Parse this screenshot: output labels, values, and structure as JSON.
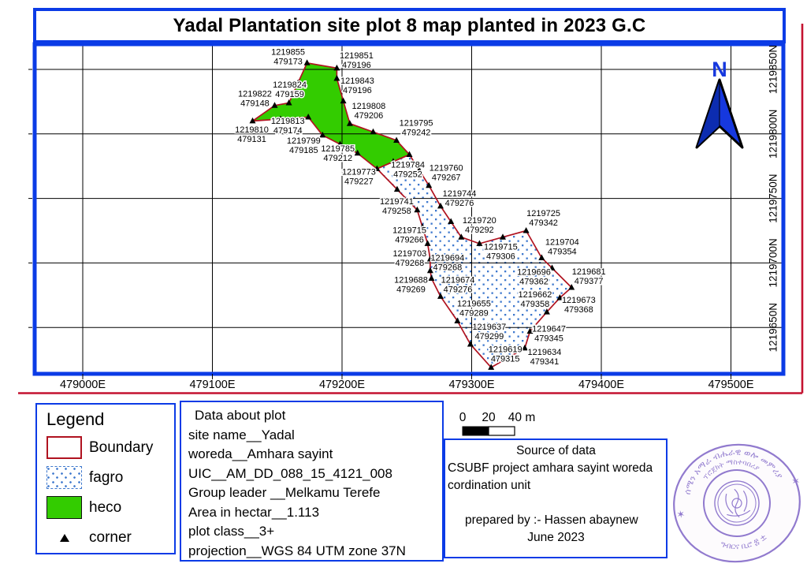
{
  "title": "Yadal Plantation site plot 8 map planted in 2023 G.C",
  "map": {
    "north_label": "N",
    "eastings": [
      {
        "v": 479000,
        "label": "479000E"
      },
      {
        "v": 479100,
        "label": "479100E"
      },
      {
        "v": 479200,
        "label": "479200E"
      },
      {
        "v": 479300,
        "label": "479300E"
      },
      {
        "v": 479400,
        "label": "479400E"
      },
      {
        "v": 479500,
        "label": "479500E"
      }
    ],
    "northings": [
      {
        "v": 1219850,
        "label": "1219850N"
      },
      {
        "v": 1219800,
        "label": "1219800N"
      },
      {
        "v": 1219750,
        "label": "1219750N"
      },
      {
        "v": 1219700,
        "label": "1219700N"
      },
      {
        "v": 1219650,
        "label": "1219650N"
      }
    ],
    "points": [
      {
        "n": 1219855,
        "e": 479173,
        "ox": -24,
        "oy": -8
      },
      {
        "n": 1219851,
        "e": 479196,
        "ox": 25,
        "oy": -10
      },
      {
        "n": 1219843,
        "e": 479196,
        "ox": 26,
        "oy": 9
      },
      {
        "n": 1219808,
        "e": 479206,
        "ox": 24,
        "oy": -16
      },
      {
        "n": 1219795,
        "e": 479242,
        "ox": 25,
        "oy": -16
      },
      {
        "n": 1219784,
        "e": 479252,
        "ox": -2,
        "oy": 19
      },
      {
        "n": 1219760,
        "e": 479267,
        "ox": 22,
        "oy": -16
      },
      {
        "n": 1219744,
        "e": 479276,
        "ox": 24,
        "oy": -10
      },
      {
        "n": 1219720,
        "e": 479292,
        "ox": 23,
        "oy": -15
      },
      {
        "n": 1219715,
        "e": 479306,
        "ox": 27,
        "oy": 10
      },
      {
        "n": 1219725,
        "e": 479342,
        "ox": 22,
        "oy": -16
      },
      {
        "n": 1219704,
        "e": 479354,
        "ox": 26,
        "oy": -14
      },
      {
        "n": 1219696,
        "e": 479362,
        "ox": -23,
        "oy": 11
      },
      {
        "n": 1219681,
        "e": 479377,
        "ox": 22,
        "oy": -14
      },
      {
        "n": 1219673,
        "e": 479368,
        "ox": 24,
        "oy": 9
      },
      {
        "n": 1219662,
        "e479": true,
        "e": 479358,
        "ox": -15,
        "oy": -16
      },
      {
        "n": 1219647,
        "e": 479345,
        "ox": 24,
        "oy": 3
      },
      {
        "n": 1219634,
        "e": 479341,
        "ox": 25,
        "oy": 11
      },
      {
        "n": 1219619,
        "e": 479315,
        "ox": 18,
        "oy": -17
      },
      {
        "n": 1219637,
        "e": 479299,
        "ox": 24,
        "oy": -16
      },
      {
        "n": 1219655,
        "e": 479289,
        "ox": 21,
        "oy": -16
      },
      {
        "n": 1219674,
        "e": 479276,
        "ox": 22,
        "oy": -15
      },
      {
        "n": 1219688,
        "e": 479269,
        "ox": -26,
        "oy": 8
      },
      {
        "n": 1219694,
        "e": 479268,
        "ox": 22,
        "oy": -10
      },
      {
        "n": 1219703,
        "e": 479268,
        "ox": -26,
        "oy": -1
      },
      {
        "n": 1219715,
        "e": 479266,
        "ox": -23,
        "oy": -11
      },
      {
        "n": 1219741,
        "e": 479258,
        "ox": -26,
        "oy": -5
      },
      {
        "n": 1219773,
        "e": 479227,
        "ox": -23,
        "oy": 10
      },
      {
        "n": 1219785,
        "e": 479212,
        "ox": -25,
        "oy": 0
      },
      {
        "n": 1219799,
        "e": 479185,
        "ox": -24,
        "oy": 13
      },
      {
        "n": 1219813,
        "e": 479174,
        "ox": -26,
        "oy": 11
      },
      {
        "n": 1219810,
        "e": 479131,
        "ox": -1,
        "oy": 17
      },
      {
        "n": 1219822,
        "e": 479148,
        "ox": -25,
        "oy": -9
      },
      {
        "n": 1219824,
        "e": 479159,
        "ox": 1,
        "oy": -17
      }
    ],
    "heco_ring": [
      0,
      1,
      2,
      3,
      4,
      5,
      27,
      28,
      29,
      30,
      31,
      32,
      33
    ],
    "fagro_ring": [
      5,
      6,
      7,
      8,
      9,
      10,
      11,
      12,
      13,
      14,
      15,
      16,
      17,
      18,
      19,
      20,
      21,
      22,
      23,
      24,
      25,
      26,
      27
    ],
    "colors": {
      "frame_blue": "#0B3BE6",
      "boundary_red": "#B01320",
      "page_red": "#C41230",
      "heco_green": "#33CC00",
      "fagro_dot_blue": "#3F79CE",
      "arrow_blue": "#1638DE",
      "arrow_dark": "#0C2CB0",
      "stamp_purple": "#7E63C6"
    }
  },
  "legend": {
    "title": "Legend",
    "items": [
      {
        "label": "Boundary",
        "swatch": "boundary"
      },
      {
        "label": "fagro",
        "swatch": "fagro"
      },
      {
        "label": "heco",
        "swatch": "heco"
      },
      {
        "label": "corner",
        "swatch": "corner"
      }
    ]
  },
  "plot_info": {
    "lines": [
      "Data about plot",
      "site name__Yadal",
      "woreda__Amhara sayint",
      "UIC__AM_DD_088_15_4121_008",
      "Group leader __Melkamu Terefe",
      "Area in hectar__1.113",
      "plot class__3+",
      "projection__WGS 84 UTM zone 37N"
    ]
  },
  "scalebar": {
    "tick_labels": [
      "0",
      "20",
      "40 m"
    ]
  },
  "source": {
    "lines": [
      "Source of data",
      "CSUBF project amhara sayint woreda",
      "cordination unit",
      "",
      "prepared by :- Hassen abaynew",
      "June 2023"
    ]
  },
  "stamp": {
    "top_arc": "ሰሜን አማራ ብሔራዊ ወሎ መምሪያ",
    "mid_arc": "ፕሮጀክት ማስተባበሪያ",
    "bottom_arc": "ግብርና ቢሮ ፰ ±",
    "star": "✶"
  }
}
